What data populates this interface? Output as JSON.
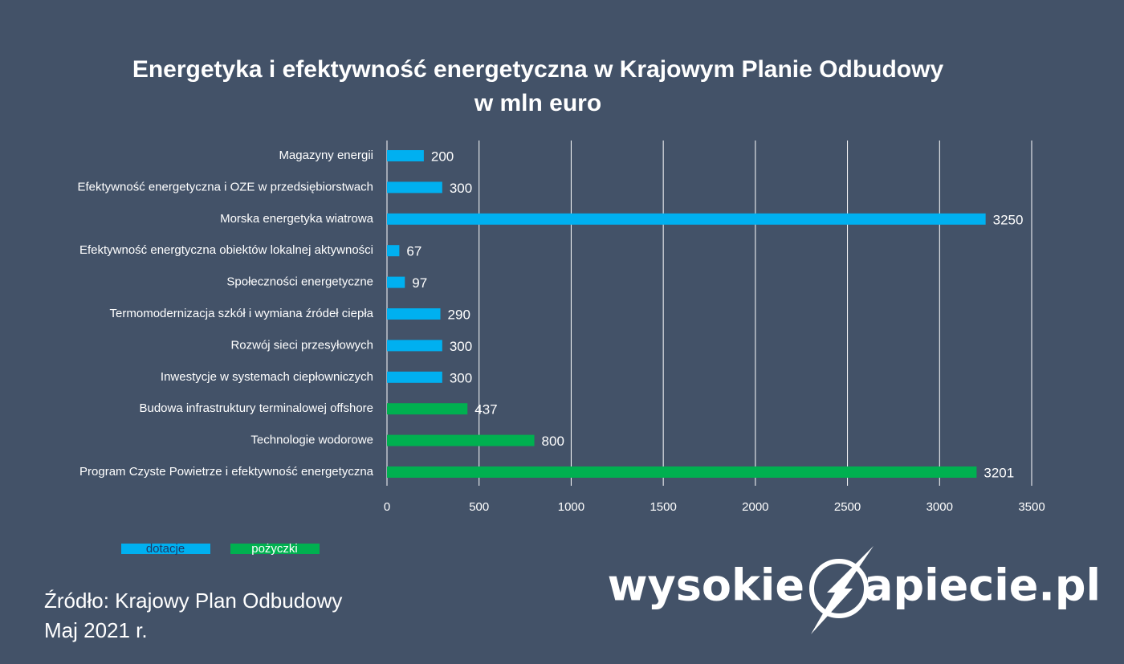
{
  "chart_data": {
    "type": "hbar",
    "title": "Energetyka i efektywność energetyczna w Krajowym Planie Odbudowy",
    "subtitle": "w mln euro",
    "categories": [
      "Magazyny energii",
      "Efektywność energetyczna i OZE w przedsiębiorstwach",
      "Morska energetyka wiatrowa",
      "Efektywność energtyczna obiektów lokalnej aktywności",
      "Społeczności energetyczne",
      "Termomodernizacja szkół i wymiana źródeł ciepła",
      "Rozwój sieci przesyłowych",
      "Inwestycje w systemach ciepłowniczych",
      "Budowa infrastruktury terminalowej offshore",
      "Technologie wodorowe",
      "Program Czyste Powietrze i efektywność energetyczna"
    ],
    "series": [
      {
        "name": "dotacje",
        "color": "#00b0f0",
        "values": [
          200,
          300,
          3250,
          67,
          97,
          290,
          300,
          300,
          null,
          null,
          null
        ]
      },
      {
        "name": "pożyczki",
        "color": "#00b050",
        "values": [
          null,
          null,
          null,
          null,
          null,
          null,
          null,
          null,
          437,
          800,
          3201
        ]
      }
    ],
    "xlim": [
      0,
      3500
    ],
    "xticks": [
      0,
      500,
      1000,
      1500,
      2000,
      2500,
      3000,
      3500
    ],
    "grid": true
  },
  "source": [
    "Źródło: Krajowy Plan Odbudowy",
    "Maj 2021 r."
  ],
  "logo": [
    "wysokie",
    "apiecie.pl"
  ]
}
